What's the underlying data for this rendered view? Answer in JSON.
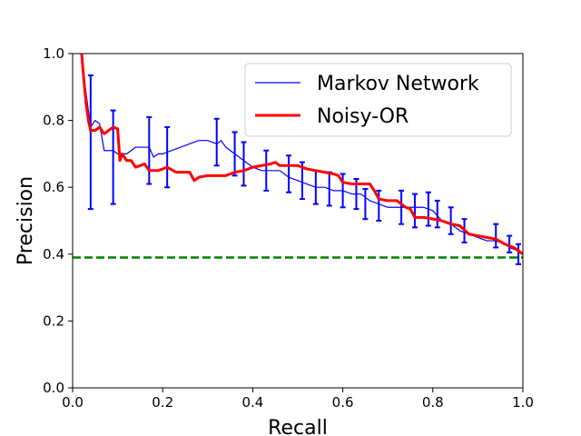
{
  "chart_data": {
    "type": "line",
    "title": "",
    "xlabel": "Recall",
    "ylabel": "Precision",
    "xlim": [
      0.0,
      1.0
    ],
    "ylim": [
      0.0,
      1.0
    ],
    "xticks": [
      "0.0",
      "0.2",
      "0.4",
      "0.6",
      "0.8",
      "1.0"
    ],
    "yticks": [
      "0.0",
      "0.2",
      "0.4",
      "0.6",
      "0.8",
      "1.0"
    ],
    "grid": false,
    "legend_position": "top-right",
    "series": [
      {
        "name": "Markov Network",
        "color": "#0000ff",
        "style": "thin-line",
        "x": [
          0.02,
          0.03,
          0.04,
          0.05,
          0.06,
          0.07,
          0.08,
          0.09,
          0.1,
          0.11,
          0.12,
          0.13,
          0.14,
          0.15,
          0.17,
          0.18,
          0.19,
          0.2,
          0.22,
          0.24,
          0.26,
          0.28,
          0.3,
          0.32,
          0.33,
          0.34,
          0.36,
          0.38,
          0.4,
          0.42,
          0.43,
          0.44,
          0.46,
          0.48,
          0.5,
          0.52,
          0.54,
          0.56,
          0.58,
          0.6,
          0.62,
          0.64,
          0.66,
          0.68,
          0.7,
          0.72,
          0.74,
          0.76,
          0.78,
          0.8,
          0.82,
          0.84,
          0.86,
          0.88,
          0.9,
          0.92,
          0.94,
          0.96,
          0.97,
          0.99,
          1.0
        ],
        "y": [
          0.99,
          0.88,
          0.78,
          0.8,
          0.79,
          0.71,
          0.71,
          0.71,
          0.7,
          0.7,
          0.7,
          0.71,
          0.72,
          0.72,
          0.72,
          0.69,
          0.7,
          0.7,
          0.71,
          0.72,
          0.73,
          0.74,
          0.74,
          0.73,
          0.74,
          0.72,
          0.7,
          0.68,
          0.66,
          0.65,
          0.65,
          0.65,
          0.65,
          0.63,
          0.62,
          0.61,
          0.6,
          0.6,
          0.59,
          0.59,
          0.58,
          0.58,
          0.56,
          0.55,
          0.54,
          0.54,
          0.54,
          0.54,
          0.54,
          0.53,
          0.5,
          0.49,
          0.47,
          0.46,
          0.45,
          0.44,
          0.44,
          0.43,
          0.42,
          0.41,
          0.4
        ],
        "error_bars": {
          "x": [
            0.04,
            0.09,
            0.17,
            0.21,
            0.32,
            0.36,
            0.38,
            0.43,
            0.48,
            0.51,
            0.54,
            0.57,
            0.6,
            0.63,
            0.65,
            0.68,
            0.73,
            0.76,
            0.79,
            0.81,
            0.84,
            0.87,
            0.94,
            0.97,
            0.99
          ],
          "y": [
            0.735,
            0.69,
            0.71,
            0.69,
            0.735,
            0.7,
            0.67,
            0.65,
            0.64,
            0.62,
            0.6,
            0.595,
            0.59,
            0.58,
            0.55,
            0.545,
            0.54,
            0.53,
            0.535,
            0.52,
            0.5,
            0.47,
            0.455,
            0.43,
            0.4
          ],
          "err": [
            0.2,
            0.14,
            0.1,
            0.09,
            0.07,
            0.065,
            0.065,
            0.06,
            0.055,
            0.055,
            0.05,
            0.05,
            0.05,
            0.045,
            0.045,
            0.045,
            0.05,
            0.05,
            0.05,
            0.04,
            0.04,
            0.035,
            0.035,
            0.025,
            0.03
          ]
        }
      },
      {
        "name": "Noisy-OR",
        "color": "#ff0000",
        "style": "thick-line",
        "x": [
          0.02,
          0.025,
          0.03,
          0.035,
          0.04,
          0.05,
          0.06,
          0.07,
          0.08,
          0.09,
          0.1,
          0.105,
          0.11,
          0.12,
          0.13,
          0.14,
          0.16,
          0.17,
          0.19,
          0.21,
          0.23,
          0.25,
          0.26,
          0.27,
          0.28,
          0.3,
          0.32,
          0.33,
          0.34,
          0.35,
          0.36,
          0.38,
          0.4,
          0.42,
          0.44,
          0.45,
          0.46,
          0.48,
          0.5,
          0.52,
          0.54,
          0.56,
          0.58,
          0.59,
          0.6,
          0.62,
          0.64,
          0.66,
          0.67,
          0.68,
          0.7,
          0.72,
          0.74,
          0.75,
          0.76,
          0.78,
          0.8,
          0.82,
          0.84,
          0.86,
          0.88,
          0.9,
          0.92,
          0.94,
          0.96,
          0.98,
          0.99,
          1.0
        ],
        "y": [
          1.0,
          0.92,
          0.85,
          0.8,
          0.77,
          0.77,
          0.78,
          0.76,
          0.77,
          0.78,
          0.775,
          0.68,
          0.7,
          0.68,
          0.68,
          0.66,
          0.67,
          0.65,
          0.65,
          0.66,
          0.645,
          0.645,
          0.645,
          0.62,
          0.63,
          0.635,
          0.635,
          0.635,
          0.635,
          0.64,
          0.645,
          0.65,
          0.66,
          0.665,
          0.67,
          0.675,
          0.665,
          0.665,
          0.665,
          0.655,
          0.65,
          0.645,
          0.64,
          0.635,
          0.615,
          0.61,
          0.61,
          0.61,
          0.59,
          0.565,
          0.56,
          0.56,
          0.54,
          0.535,
          0.51,
          0.51,
          0.505,
          0.5,
          0.49,
          0.485,
          0.46,
          0.455,
          0.45,
          0.445,
          0.43,
          0.42,
          0.41,
          0.4
        ]
      }
    ],
    "baseline": {
      "y": 0.39,
      "color": "#008000",
      "style": "dashed"
    }
  }
}
